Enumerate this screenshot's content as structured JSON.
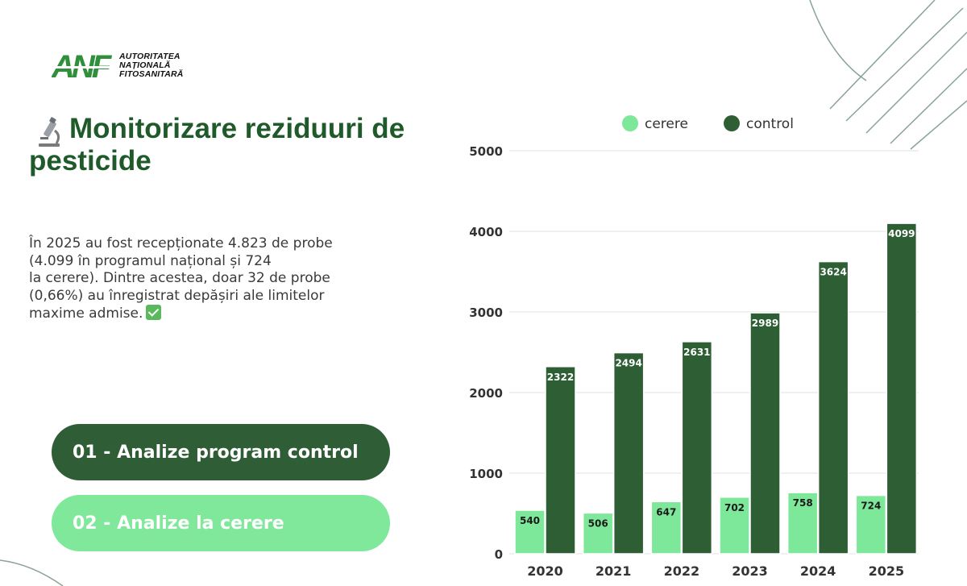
{
  "brand": {
    "logo_letters": "ANF",
    "name_lines": [
      "AUTORITATEA",
      "NAȚIONALĂ",
      "FITOSANITARĂ"
    ]
  },
  "page": {
    "title": "Monitorizare reziduuri de pesticide",
    "title_icon": "microscope-icon",
    "description_lines": [
      "În 2025 au fost recepționate 4.823 de probe",
      "(4.099 în programul național și 724",
      "la cerere). Dintre acestea, doar 32 de probe",
      "(0,66%) au înregistrat depășiri ale limitelor",
      "maxime admise."
    ],
    "description_icon": "check-mark-icon"
  },
  "buttons": {
    "control_label": "01 - Analize program control",
    "cerere_label": "02 - Analize la cerere"
  },
  "colors": {
    "cerere": "#7ee89a",
    "control": "#2e5f34",
    "title": "#1f5a2a",
    "button_dark": "#2f5e36",
    "button_light": "#7fe89a"
  },
  "chart_data": {
    "type": "bar",
    "categories": [
      "2020",
      "2021",
      "2022",
      "2023",
      "2024",
      "2025"
    ],
    "series": [
      {
        "name": "cerere",
        "values": [
          540,
          506,
          647,
          702,
          758,
          724
        ]
      },
      {
        "name": "control",
        "values": [
          2322,
          2494,
          2631,
          2989,
          3624,
          4099
        ]
      }
    ],
    "y_ticks": [
      0,
      1000,
      2000,
      3000,
      4000,
      5000
    ],
    "ylim": [
      0,
      5000
    ],
    "legend_position": "top",
    "data_labels": true,
    "grid": true
  }
}
